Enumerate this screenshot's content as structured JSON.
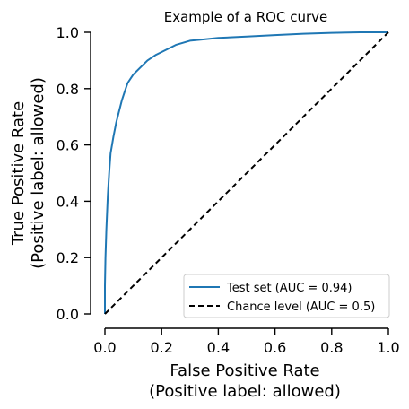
{
  "chart_data": {
    "type": "line",
    "title": "Example of a ROC curve",
    "xlabel": [
      "False Positive Rate",
      "(Positive label: allowed)"
    ],
    "ylabel": [
      "True Positive Rate",
      "(Positive label: allowed)"
    ],
    "xlim": [
      0,
      1
    ],
    "ylim": [
      0,
      1
    ],
    "xticks": [
      "0.0",
      "0.2",
      "0.4",
      "0.6",
      "0.8",
      "1.0"
    ],
    "yticks": [
      "0.0",
      "0.2",
      "0.4",
      "0.6",
      "0.8",
      "1.0"
    ],
    "grid": false,
    "legend_position": "lower-right",
    "series": [
      {
        "name": "Test set (AUC = 0.94)",
        "color": "#1f77b4",
        "style": "solid",
        "x": [
          0.0,
          0.0,
          0.002,
          0.005,
          0.01,
          0.015,
          0.02,
          0.03,
          0.04,
          0.05,
          0.06,
          0.07,
          0.08,
          0.1,
          0.12,
          0.15,
          0.18,
          0.2,
          0.25,
          0.3,
          0.35,
          0.4,
          0.5,
          0.6,
          0.7,
          0.8,
          0.9,
          1.0
        ],
        "y": [
          0.0,
          0.1,
          0.2,
          0.3,
          0.42,
          0.5,
          0.57,
          0.63,
          0.68,
          0.72,
          0.76,
          0.79,
          0.82,
          0.85,
          0.87,
          0.9,
          0.92,
          0.93,
          0.955,
          0.97,
          0.975,
          0.98,
          0.985,
          0.99,
          0.995,
          0.998,
          1.0,
          1.0
        ]
      },
      {
        "name": "Chance level (AUC = 0.5)",
        "color": "#000000",
        "style": "dashed",
        "x": [
          0,
          1
        ],
        "y": [
          0,
          1
        ]
      }
    ]
  }
}
